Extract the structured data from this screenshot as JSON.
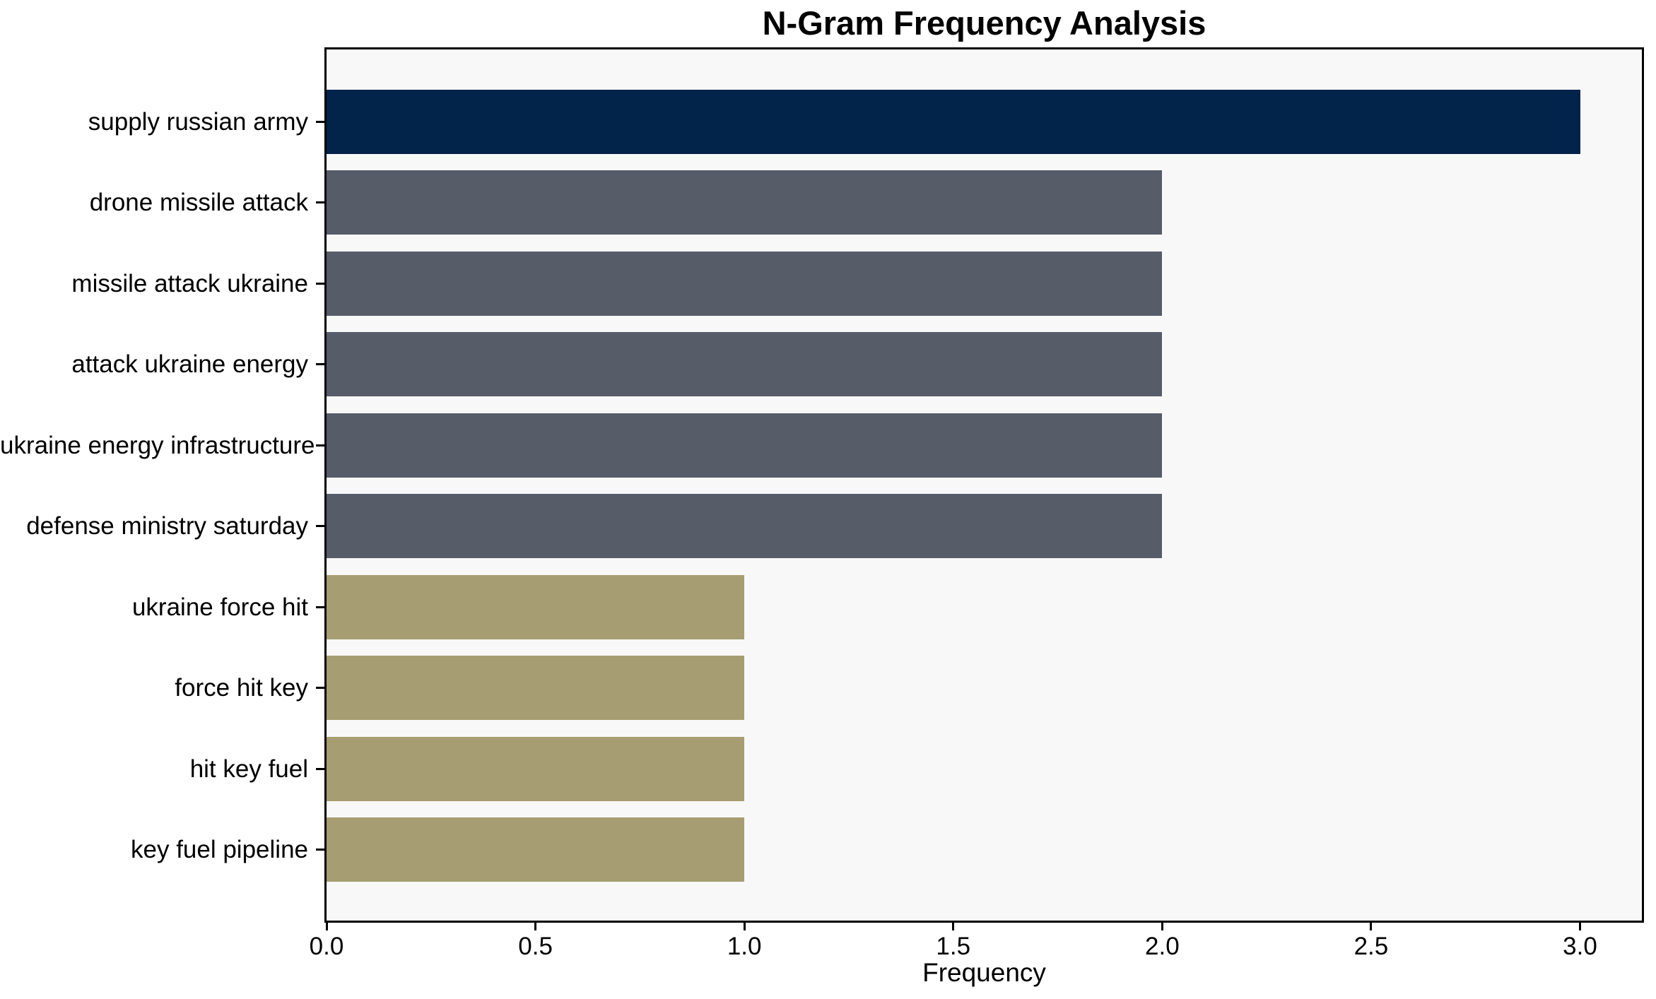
{
  "chart_data": {
    "type": "bar",
    "orientation": "horizontal",
    "title": "N-Gram Frequency Analysis",
    "xlabel": "Frequency",
    "ylabel": "",
    "categories": [
      "supply russian army",
      "drone missile attack",
      "missile attack ukraine",
      "attack ukraine energy",
      "ukraine energy infrastructure",
      "defense ministry saturday",
      "ukraine force hit",
      "force hit key",
      "hit key fuel",
      "key fuel pipeline"
    ],
    "values": [
      3,
      2,
      2,
      2,
      2,
      2,
      1,
      1,
      1,
      1
    ],
    "bar_colors": [
      "#02234a",
      "#575c69",
      "#575c69",
      "#575c69",
      "#575c69",
      "#575c69",
      "#a69d72",
      "#a69d72",
      "#a69d72",
      "#a69d72"
    ],
    "x_tick_values": [
      0,
      0.5,
      1,
      1.5,
      2,
      2.5,
      3
    ],
    "x_tick_labels": [
      "0.0",
      "0.5",
      "1.0",
      "1.5",
      "2.0",
      "2.5",
      "3.0"
    ],
    "xlim": [
      0,
      3.148
    ],
    "grid": false,
    "legend_position": "none",
    "plot_background": "#f8f8f8",
    "page_background": "#ffffff",
    "text_color": "#000000"
  }
}
